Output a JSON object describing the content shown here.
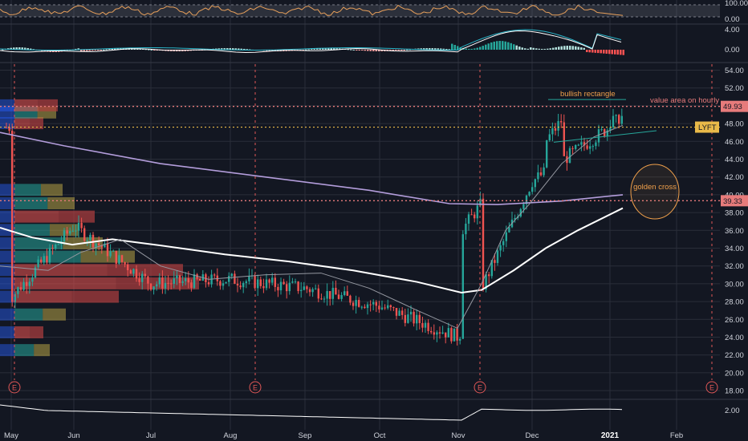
{
  "symbol": "LYFT",
  "colors": {
    "background": "#131722",
    "grid": "#2a2e39",
    "up": "#26a69a",
    "down": "#ef5350",
    "price_line": "#e9b949",
    "resistance_line": "#e77b7b",
    "ma_short": "#9598a1",
    "ma_mid": "#ffffff",
    "ma_long": "#b39ddb",
    "annotation": "#f0a04b",
    "earnings_marker": "#e05757"
  },
  "annotations": {
    "bullish_rectangle": "bullish rectangle",
    "value_area": "value area on hourly",
    "golden_cross": "golden cross"
  },
  "earnings_marker_label": "E",
  "chart_data": [
    {
      "name": "rsi",
      "type": "line",
      "ylim": [
        0,
        100
      ],
      "tick_labels": [
        "100.00",
        "0.00"
      ]
    },
    {
      "name": "macd",
      "type": "bar",
      "tick_labels": [
        "4.00",
        "0.00"
      ]
    },
    {
      "name": "price",
      "type": "candlestick",
      "ylim": [
        18,
        55
      ],
      "y_ticks": [
        "54.00",
        "52.00",
        "50.00",
        "48.00",
        "46.00",
        "44.00",
        "42.00",
        "40.00",
        "38.00",
        "36.00",
        "34.00",
        "32.00",
        "30.00",
        "28.00",
        "26.00",
        "24.00",
        "22.00",
        "20.00",
        "18.00"
      ],
      "x_labels": [
        "May",
        "Jun",
        "Jul",
        "Aug",
        "Sep",
        "Oct",
        "Nov",
        "Dec",
        "2021",
        "Feb"
      ],
      "last_price": "47.60",
      "price_tags": [
        "49.93",
        "39.33"
      ],
      "grid": true,
      "key_points": [
        {
          "date": "May",
          "close": 28.5
        },
        {
          "date": "Jun",
          "close": 36.5
        },
        {
          "date": "Jul",
          "close": 30
        },
        {
          "date": "Aug",
          "close": 30.5
        },
        {
          "date": "Sep",
          "close": 29.5
        },
        {
          "date": "Oct",
          "close": 27.5
        },
        {
          "date": "Nov",
          "close": 24
        },
        {
          "date": "Dec",
          "close": 41.5
        },
        {
          "date": "2021",
          "close": 47.6
        }
      ]
    },
    {
      "name": "volume_indicator",
      "type": "line",
      "tick_labels": [
        "2.00"
      ]
    }
  ]
}
